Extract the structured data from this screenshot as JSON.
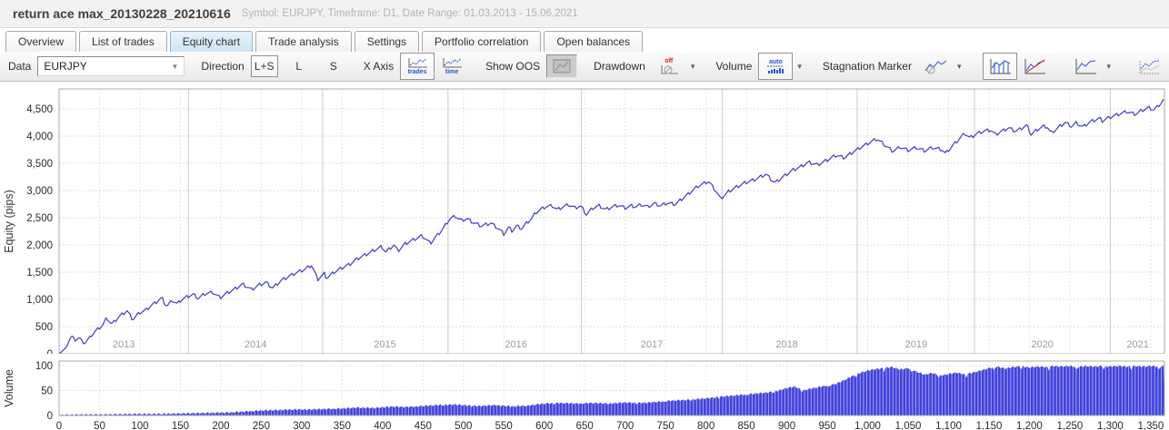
{
  "window": {
    "title": "return ace max_20130228_20210616",
    "subtitle": "Symbol: EURJPY, Timeframe: D1, Date Range: 01.03.2013 - 15.06.2021"
  },
  "tabs": [
    {
      "label": "Overview",
      "active": false
    },
    {
      "label": "List of trades",
      "active": false
    },
    {
      "label": "Equity chart",
      "active": true
    },
    {
      "label": "Trade analysis",
      "active": false
    },
    {
      "label": "Settings",
      "active": false
    },
    {
      "label": "Portfolio correlation",
      "active": false
    },
    {
      "label": "Open balances",
      "active": false
    }
  ],
  "toolbar": {
    "data_label": "Data",
    "data_value": "EURJPY",
    "direction_label": "Direction",
    "direction_options": [
      "L+S",
      "L",
      "S"
    ],
    "direction_selected": "L+S",
    "xaxis_label": "X Axis",
    "xaxis_options": [
      "trades",
      "time"
    ],
    "xaxis_selected": "trades",
    "show_oos_label": "Show OOS",
    "drawdown_label": "Drawdown",
    "drawdown_value": "off",
    "volume_label": "Volume",
    "volume_value": "auto",
    "stagnation_label": "Stagnation Marker",
    "dropdown_caret": "▾",
    "select_caret": "▼"
  },
  "chart_data": {
    "type": "line",
    "ylabel": "Equity (pips)",
    "volume_ylabel": "Volume",
    "xlim": [
      0,
      1367
    ],
    "ylim": [
      0,
      4867
    ],
    "volume_ylim": [
      0,
      109
    ],
    "y_ticks": [
      0,
      500,
      1000,
      1500,
      2000,
      2500,
      3000,
      3500,
      4000,
      4500
    ],
    "volume_y_ticks": [
      0,
      50,
      100
    ],
    "x_ticks": [
      0,
      50,
      100,
      150,
      200,
      250,
      300,
      350,
      400,
      450,
      500,
      550,
      600,
      650,
      700,
      750,
      800,
      850,
      900,
      950,
      1000,
      1050,
      1100,
      1150,
      1200,
      1250,
      1300,
      1350
    ],
    "year_boundaries": [
      160,
      326,
      481,
      646,
      820,
      987,
      1132,
      1300
    ],
    "year_labels": [
      {
        "label": "2013",
        "t": 80
      },
      {
        "label": "2014",
        "t": 243
      },
      {
        "label": "2015",
        "t": 403
      },
      {
        "label": "2016",
        "t": 565
      },
      {
        "label": "2017",
        "t": 733
      },
      {
        "label": "2018",
        "t": 900
      },
      {
        "label": "2019",
        "t": 1060
      },
      {
        "label": "2020",
        "t": 1216
      },
      {
        "label": "2021",
        "t": 1334
      }
    ],
    "colors": {
      "equity_line": "#3c3cc2",
      "volume_fill": "#4141dd",
      "grid": "#dcdcdc",
      "year_line": "#cbcbcb",
      "year_text": "#9b9b9b",
      "axis_text": "#2b2b2b",
      "plot_border": "#a9a9a9"
    },
    "equity_points": [
      [
        0,
        0
      ],
      [
        8,
        100
      ],
      [
        15,
        330
      ],
      [
        20,
        250
      ],
      [
        25,
        300
      ],
      [
        31,
        180
      ],
      [
        43,
        390
      ],
      [
        54,
        530
      ],
      [
        59,
        660
      ],
      [
        65,
        540
      ],
      [
        74,
        680
      ],
      [
        84,
        790
      ],
      [
        91,
        630
      ],
      [
        100,
        760
      ],
      [
        107,
        800
      ],
      [
        115,
        900
      ],
      [
        121,
        960
      ],
      [
        127,
        1030
      ],
      [
        133,
        870
      ],
      [
        140,
        980
      ],
      [
        146,
        920
      ],
      [
        152,
        1000
      ],
      [
        160,
        1060
      ],
      [
        166,
        1090
      ],
      [
        172,
        1020
      ],
      [
        180,
        1100
      ],
      [
        190,
        1130
      ],
      [
        199,
        1030
      ],
      [
        208,
        1120
      ],
      [
        216,
        1180
      ],
      [
        227,
        1280
      ],
      [
        238,
        1180
      ],
      [
        248,
        1270
      ],
      [
        256,
        1310
      ],
      [
        264,
        1210
      ],
      [
        275,
        1350
      ],
      [
        285,
        1430
      ],
      [
        295,
        1500
      ],
      [
        305,
        1560
      ],
      [
        312,
        1630
      ],
      [
        320,
        1370
      ],
      [
        328,
        1470
      ],
      [
        331,
        1390
      ],
      [
        340,
        1500
      ],
      [
        350,
        1580
      ],
      [
        360,
        1650
      ],
      [
        369,
        1750
      ],
      [
        379,
        1820
      ],
      [
        388,
        1890
      ],
      [
        399,
        1970
      ],
      [
        404,
        1870
      ],
      [
        414,
        2000
      ],
      [
        419,
        1890
      ],
      [
        428,
        2020
      ],
      [
        436,
        2080
      ],
      [
        449,
        2170
      ],
      [
        459,
        2030
      ],
      [
        466,
        2150
      ],
      [
        475,
        2300
      ],
      [
        483,
        2480
      ],
      [
        490,
        2530
      ],
      [
        497,
        2450
      ],
      [
        505,
        2480
      ],
      [
        511,
        2420
      ],
      [
        522,
        2350
      ],
      [
        534,
        2400
      ],
      [
        545,
        2280
      ],
      [
        550,
        2200
      ],
      [
        556,
        2320
      ],
      [
        560,
        2260
      ],
      [
        566,
        2350
      ],
      [
        572,
        2300
      ],
      [
        578,
        2400
      ],
      [
        584,
        2480
      ],
      [
        590,
        2600
      ],
      [
        601,
        2700
      ],
      [
        610,
        2720
      ],
      [
        616,
        2650
      ],
      [
        623,
        2700
      ],
      [
        630,
        2740
      ],
      [
        638,
        2680
      ],
      [
        645,
        2720
      ],
      [
        652,
        2560
      ],
      [
        660,
        2680
      ],
      [
        668,
        2720
      ],
      [
        676,
        2650
      ],
      [
        684,
        2700
      ],
      [
        692,
        2730
      ],
      [
        700,
        2680
      ],
      [
        708,
        2720
      ],
      [
        713,
        2700
      ],
      [
        720,
        2740
      ],
      [
        728,
        2700
      ],
      [
        736,
        2760
      ],
      [
        744,
        2720
      ],
      [
        752,
        2770
      ],
      [
        762,
        2750
      ],
      [
        775,
        2900
      ],
      [
        790,
        3080
      ],
      [
        803,
        3170
      ],
      [
        812,
        3000
      ],
      [
        818,
        2850
      ],
      [
        828,
        2980
      ],
      [
        837,
        3060
      ],
      [
        848,
        3140
      ],
      [
        860,
        3200
      ],
      [
        874,
        3300
      ],
      [
        885,
        3140
      ],
      [
        899,
        3290
      ],
      [
        908,
        3380
      ],
      [
        916,
        3430
      ],
      [
        927,
        3520
      ],
      [
        938,
        3470
      ],
      [
        950,
        3560
      ],
      [
        961,
        3650
      ],
      [
        971,
        3600
      ],
      [
        981,
        3700
      ],
      [
        990,
        3780
      ],
      [
        1002,
        3880
      ],
      [
        1011,
        3950
      ],
      [
        1020,
        3850
      ],
      [
        1031,
        3720
      ],
      [
        1040,
        3800
      ],
      [
        1050,
        3740
      ],
      [
        1060,
        3790
      ],
      [
        1070,
        3730
      ],
      [
        1080,
        3790
      ],
      [
        1092,
        3750
      ],
      [
        1096,
        3680
      ],
      [
        1108,
        3870
      ],
      [
        1120,
        4050
      ],
      [
        1126,
        3970
      ],
      [
        1136,
        4050
      ],
      [
        1145,
        4100
      ],
      [
        1152,
        4110
      ],
      [
        1158,
        4030
      ],
      [
        1166,
        4090
      ],
      [
        1174,
        4150
      ],
      [
        1183,
        4090
      ],
      [
        1190,
        4140
      ],
      [
        1197,
        4200
      ],
      [
        1202,
        4030
      ],
      [
        1210,
        4120
      ],
      [
        1217,
        4180
      ],
      [
        1222,
        4170
      ],
      [
        1227,
        4050
      ],
      [
        1235,
        4150
      ],
      [
        1244,
        4250
      ],
      [
        1252,
        4180
      ],
      [
        1258,
        4240
      ],
      [
        1266,
        4170
      ],
      [
        1275,
        4260
      ],
      [
        1287,
        4330
      ],
      [
        1290,
        4280
      ],
      [
        1300,
        4350
      ],
      [
        1310,
        4400
      ],
      [
        1320,
        4450
      ],
      [
        1331,
        4400
      ],
      [
        1340,
        4480
      ],
      [
        1348,
        4520
      ],
      [
        1354,
        4480
      ],
      [
        1361,
        4580
      ],
      [
        1367,
        4680
      ]
    ],
    "volume_points": [
      [
        0,
        1
      ],
      [
        30,
        2
      ],
      [
        60,
        2
      ],
      [
        90,
        3
      ],
      [
        120,
        3
      ],
      [
        150,
        4
      ],
      [
        180,
        5
      ],
      [
        210,
        6
      ],
      [
        230,
        8
      ],
      [
        250,
        10
      ],
      [
        270,
        11
      ],
      [
        290,
        12
      ],
      [
        310,
        12
      ],
      [
        330,
        13
      ],
      [
        350,
        14
      ],
      [
        370,
        16
      ],
      [
        390,
        15
      ],
      [
        410,
        18
      ],
      [
        430,
        17
      ],
      [
        450,
        19
      ],
      [
        470,
        21
      ],
      [
        490,
        22
      ],
      [
        505,
        20
      ],
      [
        520,
        19
      ],
      [
        540,
        21
      ],
      [
        560,
        18
      ],
      [
        580,
        20
      ],
      [
        601,
        24
      ],
      [
        620,
        25
      ],
      [
        640,
        24
      ],
      [
        660,
        25
      ],
      [
        680,
        24
      ],
      [
        700,
        26
      ],
      [
        715,
        25
      ],
      [
        730,
        26
      ],
      [
        745,
        28
      ],
      [
        760,
        30
      ],
      [
        775,
        31
      ],
      [
        790,
        33
      ],
      [
        805,
        35
      ],
      [
        820,
        38
      ],
      [
        835,
        40
      ],
      [
        848,
        42
      ],
      [
        862,
        44
      ],
      [
        876,
        46
      ],
      [
        890,
        50
      ],
      [
        900,
        55
      ],
      [
        910,
        58
      ],
      [
        920,
        50
      ],
      [
        930,
        54
      ],
      [
        940,
        57
      ],
      [
        950,
        60
      ],
      [
        960,
        63
      ],
      [
        970,
        70
      ],
      [
        980,
        78
      ],
      [
        990,
        85
      ],
      [
        1000,
        90
      ],
      [
        1010,
        93
      ],
      [
        1020,
        95
      ],
      [
        1030,
        97
      ],
      [
        1040,
        92
      ],
      [
        1050,
        95
      ],
      [
        1060,
        88
      ],
      [
        1070,
        82
      ],
      [
        1080,
        85
      ],
      [
        1090,
        80
      ],
      [
        1100,
        83
      ],
      [
        1110,
        86
      ],
      [
        1120,
        82
      ],
      [
        1130,
        86
      ],
      [
        1140,
        90
      ],
      [
        1150,
        95
      ],
      [
        1160,
        98
      ],
      [
        1170,
        94
      ],
      [
        1180,
        97
      ],
      [
        1190,
        99
      ],
      [
        1200,
        96
      ],
      [
        1210,
        98
      ],
      [
        1220,
        97
      ],
      [
        1230,
        99
      ],
      [
        1240,
        98
      ],
      [
        1250,
        99
      ],
      [
        1260,
        97
      ],
      [
        1270,
        99
      ],
      [
        1280,
        98
      ],
      [
        1290,
        99
      ],
      [
        1300,
        98
      ],
      [
        1310,
        99
      ],
      [
        1320,
        98
      ],
      [
        1330,
        99
      ],
      [
        1340,
        98
      ],
      [
        1350,
        99
      ],
      [
        1360,
        98
      ],
      [
        1367,
        99
      ]
    ]
  }
}
